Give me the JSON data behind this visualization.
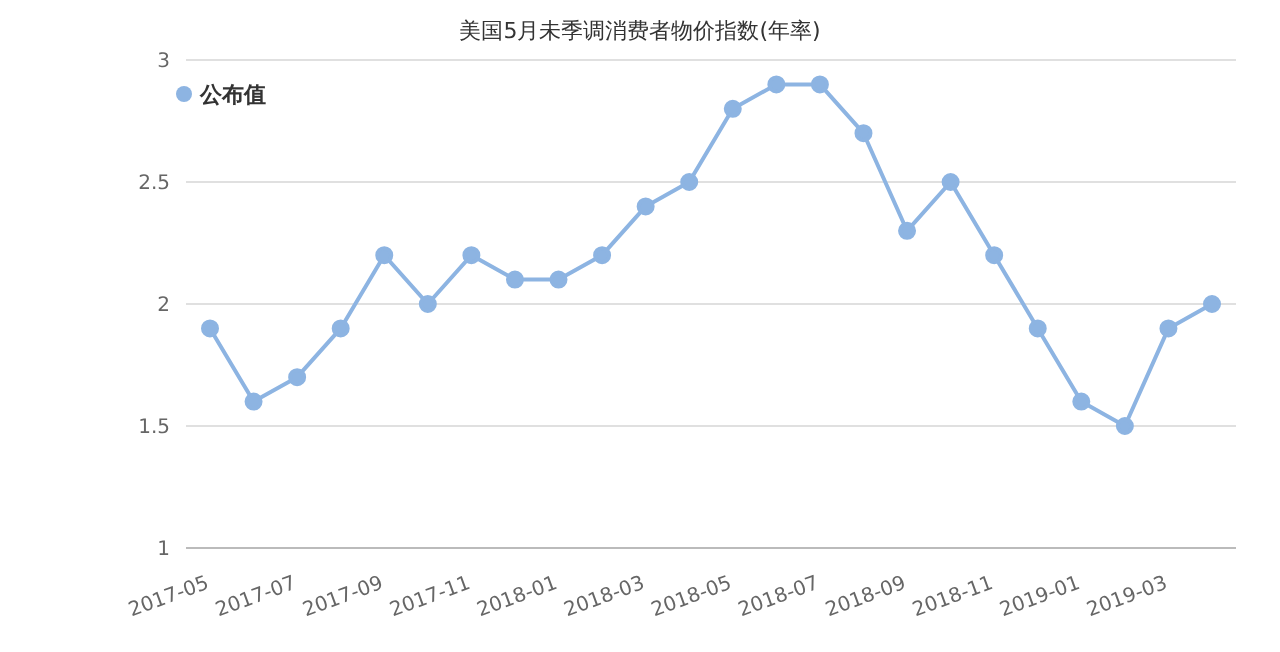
{
  "chart_data": {
    "type": "line",
    "title": "美国5月未季调消费者物价指数(年率)",
    "categories": [
      "2017-05",
      null,
      "2017-07",
      null,
      "2017-09",
      null,
      "2017-11",
      null,
      "2018-01",
      null,
      "2018-03",
      null,
      "2018-05",
      null,
      "2018-07",
      null,
      "2018-09",
      null,
      "2018-11",
      null,
      "2019-01",
      null,
      "2019-03",
      null
    ],
    "series": [
      {
        "name": "公布值",
        "color": "#8db4e2",
        "values": [
          1.9,
          1.6,
          1.7,
          1.9,
          2.2,
          2.0,
          2.2,
          2.1,
          2.1,
          2.2,
          2.4,
          2.5,
          2.8,
          2.9,
          2.9,
          2.7,
          2.3,
          2.5,
          2.2,
          1.9,
          1.6,
          1.5,
          1.9,
          2.0
        ]
      }
    ],
    "ylim": [
      1,
      3
    ],
    "yticks": [
      1,
      1.5,
      2,
      2.5,
      3
    ],
    "grid": "y",
    "legend": "top left",
    "marker": "circle",
    "line_style": "solid"
  }
}
